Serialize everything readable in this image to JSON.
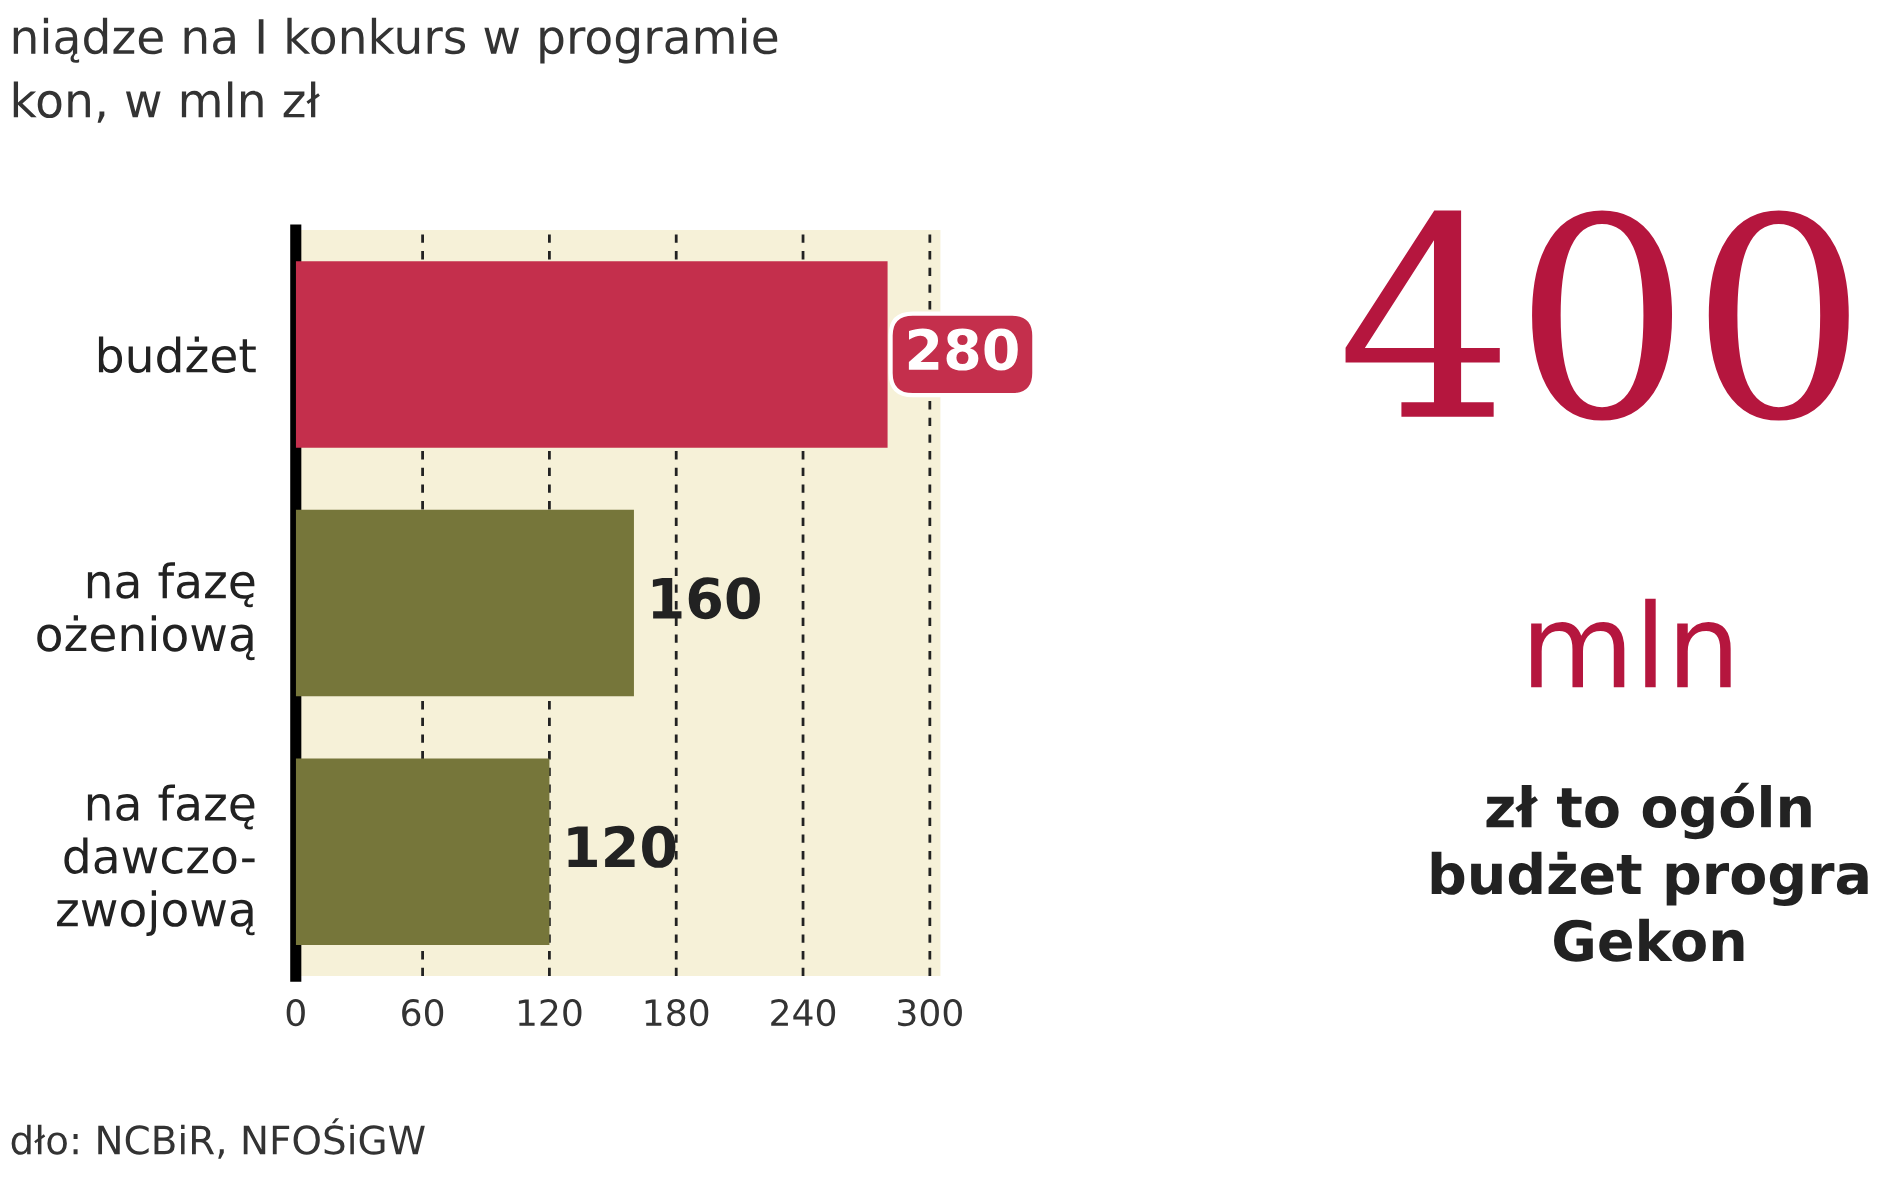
{
  "chart_data": {
    "type": "bar",
    "orientation": "horizontal",
    "title": "niądze na I konkurs w programie\nkon, w mln zł",
    "categories": [
      "budżet",
      "na fazę\nożeniową",
      "na fazę\ndawczo-\nzwojową"
    ],
    "values": [
      280,
      160,
      120
    ],
    "colors": [
      "#c42f4c",
      "#76763a",
      "#76763a"
    ],
    "xlim": [
      0,
      305
    ],
    "xticks": [
      0,
      60,
      120,
      180,
      240,
      300
    ],
    "grid": "x",
    "data_labels": true,
    "annotations": [
      "dło: NCBiR, NFOŚiGW",
      "400",
      "mln",
      "zł to ogóln\nbudżet progra\nGekon"
    ]
  }
}
